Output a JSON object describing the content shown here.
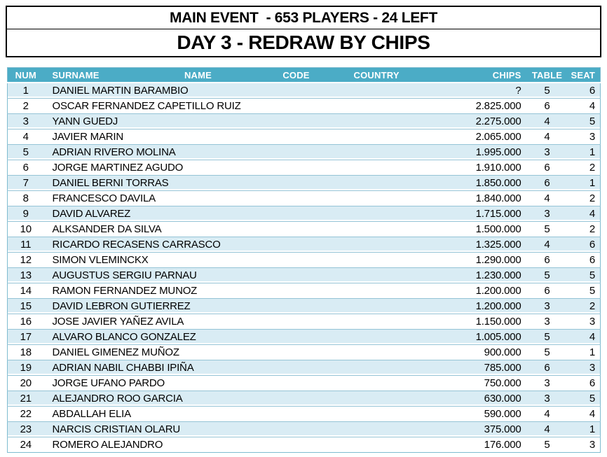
{
  "header": {
    "line1": "MAIN EVENT  - 653 PLAYERS - 24 LEFT",
    "line2": "DAY 3 - REDRAW BY CHIPS"
  },
  "colors": {
    "header_bg": "#4BACC6",
    "header_text": "#FFFFFF",
    "row_alt_bg": "#D9ECF4",
    "row_divider": "#95C4D6",
    "table_border": "#7FBCD0",
    "title_border": "#000000"
  },
  "table": {
    "columns": [
      {
        "key": "num",
        "label": "NUM"
      },
      {
        "key": "surname",
        "label": "SURNAME"
      },
      {
        "key": "name",
        "label": "NAME"
      },
      {
        "key": "code",
        "label": "CODE"
      },
      {
        "key": "country",
        "label": "COUNTRY"
      },
      {
        "key": "chips",
        "label": "CHIPS"
      },
      {
        "key": "table",
        "label": "TABLE"
      },
      {
        "key": "seat",
        "label": "SEAT"
      }
    ],
    "rows": [
      {
        "num": "1",
        "surname": "DANIEL MARTIN BARAMBIO",
        "name": "",
        "code": "",
        "country": "",
        "chips": "?",
        "table": "5",
        "seat": "6"
      },
      {
        "num": "2",
        "surname": "OSCAR FERNANDEZ CAPETILLO RUIZ",
        "name": "",
        "code": "",
        "country": "",
        "chips": "2.825.000",
        "table": "6",
        "seat": "4"
      },
      {
        "num": "3",
        "surname": "YANN GUEDJ",
        "name": "",
        "code": "",
        "country": "",
        "chips": "2.275.000",
        "table": "4",
        "seat": "5"
      },
      {
        "num": "4",
        "surname": "JAVIER MARIN",
        "name": "",
        "code": "",
        "country": "",
        "chips": "2.065.000",
        "table": "4",
        "seat": "3"
      },
      {
        "num": "5",
        "surname": "ADRIAN RIVERO MOLINA",
        "name": "",
        "code": "",
        "country": "",
        "chips": "1.995.000",
        "table": "3",
        "seat": "1"
      },
      {
        "num": "6",
        "surname": "JORGE MARTINEZ AGUDO",
        "name": "",
        "code": "",
        "country": "",
        "chips": "1.910.000",
        "table": "6",
        "seat": "2"
      },
      {
        "num": "7",
        "surname": "DANIEL BERNI TORRAS",
        "name": "",
        "code": "",
        "country": "",
        "chips": "1.850.000",
        "table": "6",
        "seat": "1"
      },
      {
        "num": "8",
        "surname": "FRANCESCO DAVILA",
        "name": "",
        "code": "",
        "country": "",
        "chips": "1.840.000",
        "table": "4",
        "seat": "2"
      },
      {
        "num": "9",
        "surname": "DAVID ALVAREZ",
        "name": "",
        "code": "",
        "country": "",
        "chips": "1.715.000",
        "table": "3",
        "seat": "4"
      },
      {
        "num": "10",
        "surname": "ALKSANDER DA SILVA",
        "name": "",
        "code": "",
        "country": "",
        "chips": "1.500.000",
        "table": "5",
        "seat": "2"
      },
      {
        "num": "11",
        "surname": "RICARDO RECASENS CARRASCO",
        "name": "",
        "code": "",
        "country": "",
        "chips": "1.325.000",
        "table": "4",
        "seat": "6"
      },
      {
        "num": "12",
        "surname": "SIMON VLEMINCKX",
        "name": "",
        "code": "",
        "country": "",
        "chips": "1.290.000",
        "table": "6",
        "seat": "6"
      },
      {
        "num": "13",
        "surname": "AUGUSTUS SERGIU PARNAU",
        "name": "",
        "code": "",
        "country": "",
        "chips": "1.230.000",
        "table": "5",
        "seat": "5"
      },
      {
        "num": "14",
        "surname": "RAMON FERNANDEZ MUNOZ",
        "name": "",
        "code": "",
        "country": "",
        "chips": "1.200.000",
        "table": "6",
        "seat": "5"
      },
      {
        "num": "15",
        "surname": "DAVID LEBRON GUTIERREZ",
        "name": "",
        "code": "",
        "country": "",
        "chips": "1.200.000",
        "table": "3",
        "seat": "2"
      },
      {
        "num": "16",
        "surname": "JOSE JAVIER YAÑEZ AVILA",
        "name": "",
        "code": "",
        "country": "",
        "chips": "1.150.000",
        "table": "3",
        "seat": "3"
      },
      {
        "num": "17",
        "surname": "ALVARO BLANCO GONZALEZ",
        "name": "",
        "code": "",
        "country": "",
        "chips": "1.005.000",
        "table": "5",
        "seat": "4"
      },
      {
        "num": "18",
        "surname": "DANIEL GIMENEZ MUÑOZ",
        "name": "",
        "code": "",
        "country": "",
        "chips": "900.000",
        "table": "5",
        "seat": "1"
      },
      {
        "num": "19",
        "surname": "ADRIAN NABIL CHABBI IPIÑA",
        "name": "",
        "code": "",
        "country": "",
        "chips": "785.000",
        "table": "6",
        "seat": "3"
      },
      {
        "num": "20",
        "surname": "JORGE UFANO PARDO",
        "name": "",
        "code": "",
        "country": "",
        "chips": "750.000",
        "table": "3",
        "seat": "6"
      },
      {
        "num": "21",
        "surname": "ALEJANDRO ROO GARCIA",
        "name": "",
        "code": "",
        "country": "",
        "chips": "630.000",
        "table": "3",
        "seat": "5"
      },
      {
        "num": "22",
        "surname": "ABDALLAH ELIA",
        "name": "",
        "code": "",
        "country": "",
        "chips": "590.000",
        "table": "4",
        "seat": "4"
      },
      {
        "num": "23",
        "surname": "NARCIS CRISTIAN OLARU",
        "name": "",
        "code": "",
        "country": "",
        "chips": "375.000",
        "table": "4",
        "seat": "1"
      },
      {
        "num": "24",
        "surname": "ROMERO ALEJANDRO",
        "name": "",
        "code": "",
        "country": "",
        "chips": "176.000",
        "table": "5",
        "seat": "3"
      }
    ]
  }
}
